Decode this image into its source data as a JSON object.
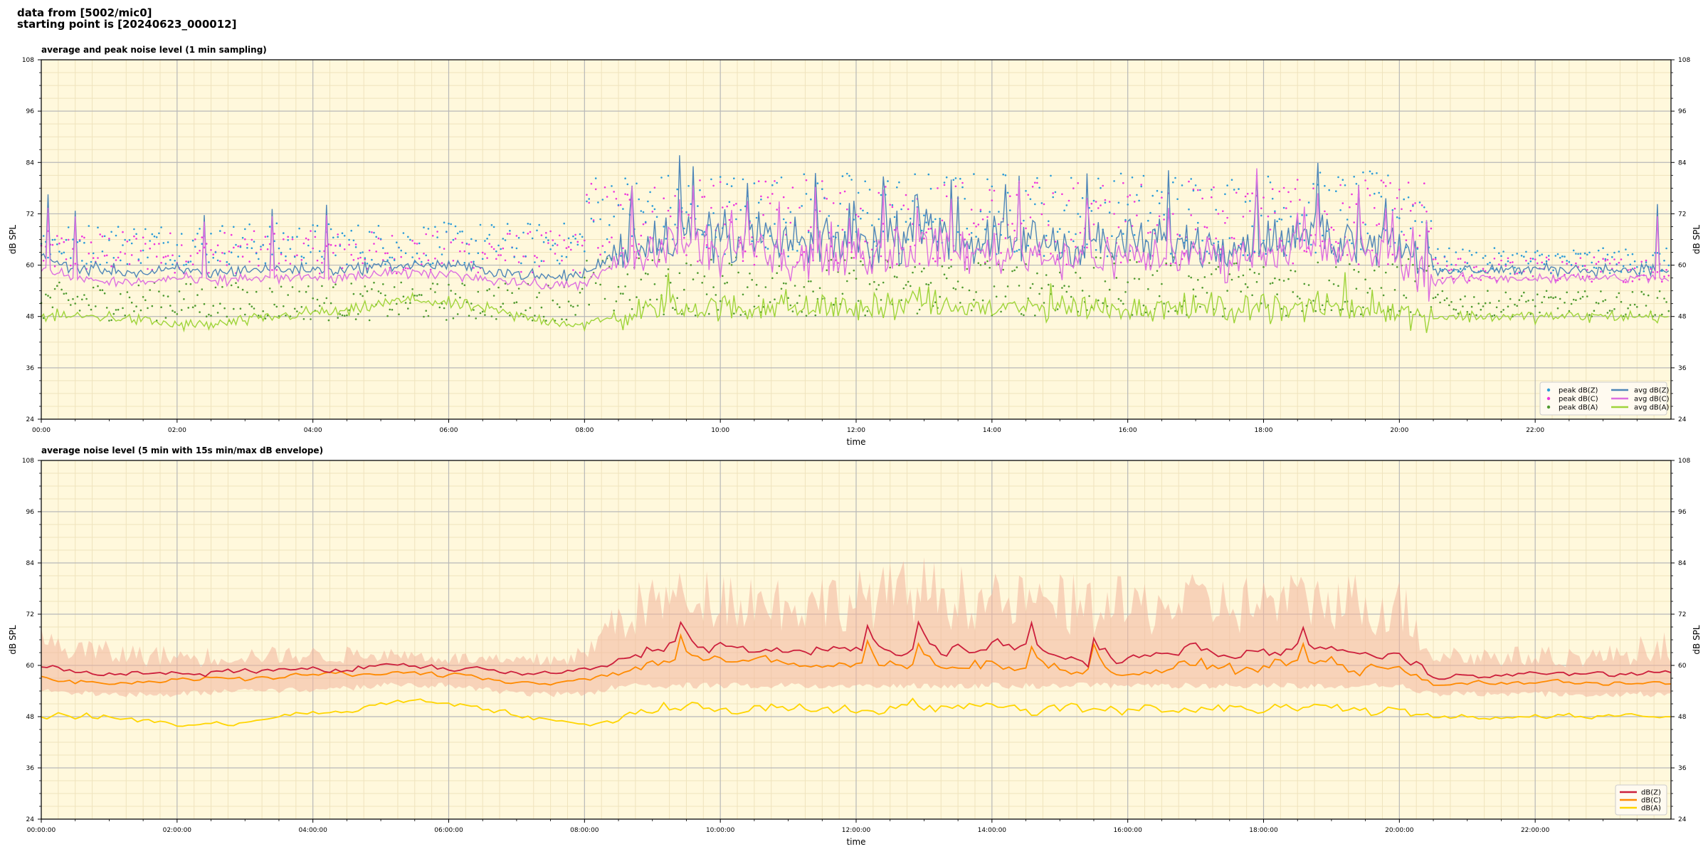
{
  "header": {
    "line1": "data from [5002/mic0]",
    "line2": "starting point is [20240623_000012]"
  },
  "theme": {
    "plot_bg": "#fff8dc",
    "grid_major": "#b8b8b8",
    "grid_minor": "#efe3bd",
    "colors": {
      "avg_z": "#4f86b8",
      "avg_c": "#dd6fe0",
      "avg_a": "#9fd43a",
      "peak_z": "#2a9bd8",
      "peak_c": "#ee34dc",
      "peak_a": "#4f9a2f",
      "db_z": "#cc1f3c",
      "db_c": "#ff8a00",
      "db_a": "#ffd500",
      "envelope": "#f2b59c"
    }
  },
  "chart_data": [
    {
      "type": "line",
      "title": "average and peak noise level (1 min sampling)",
      "xlabel": "time",
      "ylabel": "dB SPL",
      "xlim": [
        "00:00",
        "24:00"
      ],
      "ylim": [
        24,
        108
      ],
      "yticks": [
        24,
        36,
        48,
        60,
        72,
        84,
        96,
        108
      ],
      "xticks": [
        "00:00",
        "02:00",
        "04:00",
        "06:00",
        "08:00",
        "10:00",
        "12:00",
        "14:00",
        "16:00",
        "18:00",
        "20:00",
        "22:00"
      ],
      "grid": true,
      "legend_position": "lower-right",
      "legend": [
        {
          "label": "peak dB(Z)",
          "marker": "dot",
          "color_key": "peak_z"
        },
        {
          "label": "peak dB(C)",
          "marker": "dot",
          "color_key": "peak_c"
        },
        {
          "label": "peak dB(A)",
          "marker": "dot",
          "color_key": "peak_a"
        },
        {
          "label": "avg dB(Z)",
          "marker": "line",
          "color_key": "avg_z"
        },
        {
          "label": "avg dB(C)",
          "marker": "line",
          "color_key": "avg_c"
        },
        {
          "label": "avg dB(A)",
          "marker": "line",
          "color_key": "avg_a"
        }
      ],
      "series": [
        {
          "name": "avg dB(Z)",
          "x_hours": [
            0,
            0.5,
            1,
            1.5,
            2,
            2.5,
            3,
            3.5,
            4,
            4.5,
            5,
            5.5,
            6,
            6.5,
            7,
            7.5,
            8,
            8.5,
            9,
            9.5,
            10,
            10.5,
            11,
            11.5,
            12,
            12.5,
            13,
            13.5,
            14,
            14.5,
            15,
            15.5,
            16,
            16.5,
            17,
            17.5,
            18,
            18.5,
            19,
            19.5,
            20,
            20.5,
            21,
            21.5,
            22,
            22.5,
            23,
            23.5,
            24
          ],
          "values": [
            62,
            59,
            59,
            58,
            59,
            58,
            59,
            59,
            59,
            59,
            60,
            60,
            60,
            59,
            58,
            57,
            58,
            63,
            66,
            67,
            66,
            66,
            65,
            65,
            65,
            66,
            67,
            66,
            66,
            66,
            65,
            65,
            65,
            65,
            65,
            65,
            66,
            66,
            66,
            66,
            65,
            58,
            59,
            59,
            59,
            59,
            59,
            59,
            59
          ],
          "peaks_hour": [
            0.1,
            0.5,
            2.4,
            3.4,
            4.2,
            8.7,
            9.4,
            9.6,
            10.4,
            11.4,
            11.9,
            12.4,
            12.9,
            13.4,
            14.4,
            15.4,
            16.6,
            17.9,
            18.8,
            19.4,
            19.8,
            20.4,
            23.8
          ]
        },
        {
          "name": "avg dB(C)",
          "x_hours": [
            0,
            0.5,
            1,
            1.5,
            2,
            2.5,
            3,
            3.5,
            4,
            4.5,
            5,
            5.5,
            6,
            6.5,
            7,
            7.5,
            8,
            8.5,
            9,
            9.5,
            10,
            10.5,
            11,
            11.5,
            12,
            12.5,
            13,
            13.5,
            14,
            14.5,
            15,
            15.5,
            16,
            16.5,
            17,
            17.5,
            18,
            18.5,
            19,
            19.5,
            20,
            20.5,
            21,
            21.5,
            22,
            22.5,
            23,
            23.5,
            24
          ],
          "values": [
            59,
            57,
            56,
            56,
            57,
            56,
            57,
            57,
            57,
            57,
            58,
            58,
            58,
            57,
            56,
            55,
            56,
            60,
            63,
            64,
            63,
            63,
            62,
            62,
            62,
            63,
            64,
            63,
            63,
            63,
            62,
            62,
            62,
            62,
            62,
            62,
            63,
            63,
            63,
            63,
            62,
            56,
            57,
            57,
            57,
            57,
            57,
            57,
            57
          ]
        },
        {
          "name": "avg dB(A)",
          "x_hours": [
            0,
            0.5,
            1,
            1.5,
            2,
            2.5,
            3,
            3.5,
            4,
            4.5,
            5,
            5.5,
            6,
            6.5,
            7,
            7.5,
            8,
            8.5,
            9,
            9.5,
            10,
            10.5,
            11,
            11.5,
            12,
            12.5,
            13,
            13.5,
            14,
            14.5,
            15,
            15.5,
            16,
            16.5,
            17,
            17.5,
            18,
            18.5,
            19,
            19.5,
            20,
            20.5,
            21,
            21.5,
            22,
            22.5,
            23,
            23.5,
            24
          ],
          "values": [
            48,
            48,
            48,
            47,
            46,
            46,
            47,
            48,
            49,
            49,
            51,
            52,
            51,
            50,
            48,
            47,
            46,
            48,
            50,
            50,
            50,
            50,
            50,
            50,
            50,
            50,
            51,
            50,
            50,
            50,
            50,
            50,
            50,
            50,
            50,
            50,
            50,
            50,
            50,
            50,
            49,
            48,
            48,
            48,
            48,
            48,
            48,
            48,
            48
          ]
        },
        {
          "name": "peak dB(Z)",
          "marker": "dot",
          "band": [
            [
              0,
              60,
              70
            ],
            [
              8,
              62,
              82
            ],
            [
              20.5,
              58,
              64
            ],
            [
              24,
              58,
              64
            ]
          ]
        },
        {
          "name": "peak dB(C)",
          "marker": "dot",
          "band": [
            [
              0,
              58,
              68
            ],
            [
              8,
              60,
              80
            ],
            [
              20.5,
              56,
              62
            ],
            [
              24,
              56,
              62
            ]
          ]
        },
        {
          "name": "peak dB(A)",
          "marker": "dot",
          "band": [
            [
              0,
              47,
              56
            ],
            [
              8,
              48,
              62
            ],
            [
              20.5,
              48,
              54
            ],
            [
              24,
              48,
              54
            ]
          ]
        }
      ]
    },
    {
      "type": "line",
      "title": "average noise level (5 min with 15s min/max dB envelope)",
      "xlabel": "time",
      "ylabel": "dB SPL",
      "xlim": [
        "00:00:00",
        "24:00:00"
      ],
      "ylim": [
        24,
        108
      ],
      "yticks": [
        24,
        36,
        48,
        60,
        72,
        84,
        96,
        108
      ],
      "xticks": [
        "00:00:00",
        "02:00:00",
        "04:00:00",
        "06:00:00",
        "08:00:00",
        "10:00:00",
        "12:00:00",
        "14:00:00",
        "16:00:00",
        "18:00:00",
        "20:00:00",
        "22:00:00"
      ],
      "grid": true,
      "legend_position": "lower-right",
      "legend": [
        {
          "label": "dB(Z)",
          "marker": "line",
          "color_key": "db_z"
        },
        {
          "label": "dB(C)",
          "marker": "line",
          "color_key": "db_c"
        },
        {
          "label": "dB(A)",
          "marker": "line",
          "color_key": "db_a"
        }
      ],
      "series": [
        {
          "name": "dB(Z)",
          "x_hours": [
            0,
            0.5,
            1,
            1.5,
            2,
            2.5,
            3,
            3.5,
            4,
            4.5,
            5,
            5.5,
            6,
            6.5,
            7,
            7.5,
            8,
            8.5,
            9,
            9.5,
            10,
            10.5,
            11,
            11.5,
            12,
            12.5,
            13,
            13.5,
            14,
            14.5,
            15,
            15.5,
            16,
            16.5,
            17,
            17.5,
            18,
            18.5,
            19,
            19.5,
            20,
            20.5,
            21,
            21.5,
            22,
            22.5,
            23,
            23.5,
            24
          ],
          "values": [
            60,
            58,
            58,
            58,
            58,
            58,
            59,
            59,
            59,
            59,
            60,
            60,
            59,
            59,
            58,
            58,
            59,
            61,
            64,
            66,
            64,
            64,
            63,
            63,
            64,
            63,
            65,
            63,
            64,
            64,
            62,
            62,
            61,
            63,
            64,
            62,
            63,
            64,
            64,
            62,
            62,
            57,
            58,
            58,
            58,
            58,
            58,
            58,
            58
          ],
          "peaks_hour": [
            9.4,
            12.2,
            12.9,
            14.6,
            15.5,
            18.6
          ]
        },
        {
          "name": "dB(C)",
          "x_hours": [
            0,
            0.5,
            1,
            1.5,
            2,
            2.5,
            3,
            3.5,
            4,
            4.5,
            5,
            5.5,
            6,
            6.5,
            7,
            7.5,
            8,
            8.5,
            9,
            9.5,
            10,
            10.5,
            11,
            11.5,
            12,
            12.5,
            13,
            13.5,
            14,
            14.5,
            15,
            15.5,
            16,
            16.5,
            17,
            17.5,
            18,
            18.5,
            19,
            19.5,
            20,
            20.5,
            21,
            21.5,
            22,
            22.5,
            23,
            23.5,
            24
          ],
          "values": [
            57,
            56,
            56,
            56,
            57,
            57,
            57,
            57,
            58,
            58,
            58,
            58,
            58,
            57,
            56,
            56,
            57,
            58,
            61,
            62,
            61,
            61,
            60,
            60,
            60,
            60,
            61,
            60,
            60,
            60,
            59,
            59,
            58,
            59,
            60,
            59,
            60,
            61,
            60,
            59,
            59,
            55,
            56,
            56,
            56,
            56,
            56,
            56,
            56
          ]
        },
        {
          "name": "dB(A)",
          "x_hours": [
            0,
            0.5,
            1,
            1.5,
            2,
            2.5,
            3,
            3.5,
            4,
            4.5,
            5,
            5.5,
            6,
            6.5,
            7,
            7.5,
            8,
            8.5,
            9,
            9.5,
            10,
            10.5,
            11,
            11.5,
            12,
            12.5,
            13,
            13.5,
            14,
            14.5,
            15,
            15.5,
            16,
            16.5,
            17,
            17.5,
            18,
            18.5,
            19,
            19.5,
            20,
            20.5,
            21,
            21.5,
            22,
            22.5,
            23,
            23.5,
            24
          ],
          "values": [
            48,
            48,
            48,
            47,
            46,
            46,
            47,
            48,
            49,
            49,
            51,
            52,
            51,
            50,
            48,
            47,
            46,
            48,
            50,
            50,
            50,
            50,
            50,
            50,
            50,
            50,
            51,
            50,
            50,
            50,
            50,
            50,
            50,
            50,
            50,
            50,
            50,
            50,
            50,
            50,
            49,
            48,
            48,
            48,
            48,
            48,
            48,
            48,
            48
          ]
        },
        {
          "name": "envelope",
          "x_hours": [
            0,
            1,
            2,
            3,
            4,
            5,
            6,
            7,
            8,
            8.5,
            9,
            10,
            11,
            12,
            13,
            14,
            15,
            16,
            17,
            18,
            19,
            20,
            20.5,
            21,
            22,
            23,
            24
          ],
          "min": [
            55,
            54,
            54,
            55,
            55,
            56,
            56,
            54,
            54,
            56,
            56,
            56,
            56,
            56,
            56,
            56,
            56,
            56,
            56,
            56,
            56,
            56,
            54,
            54,
            54,
            54,
            54
          ],
          "max": [
            68,
            65,
            64,
            64,
            64,
            64,
            63,
            62,
            64,
            76,
            80,
            82,
            80,
            81,
            84,
            80,
            80,
            79,
            80,
            80,
            81,
            80,
            66,
            64,
            64,
            64,
            68
          ]
        }
      ]
    }
  ]
}
